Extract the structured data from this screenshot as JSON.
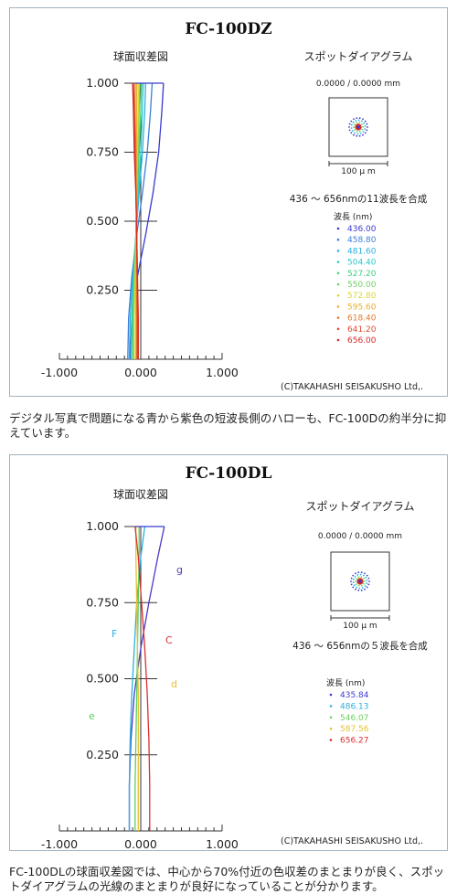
{
  "chart_data": [
    {
      "type": "line",
      "title": "FC-100DZ",
      "subtitle": "球面収差図",
      "x_ticks": [
        "-1.000",
        "0.000",
        "1.000"
      ],
      "y_ticks": [
        "1.000",
        "0.750",
        "0.500",
        "0.250"
      ],
      "xlim": [
        -1.0,
        1.0
      ],
      "ylim": [
        0,
        1.0
      ],
      "series": [
        {
          "name": "436.00",
          "color": "#3a3ad0",
          "x": [
            -0.13,
            -0.11,
            -0.04,
            0.06,
            0.15,
            0.22,
            0.26,
            0.28
          ],
          "y": [
            0,
            0.15,
            0.3,
            0.45,
            0.6,
            0.75,
            0.9,
            1.0
          ]
        },
        {
          "name": "458.80",
          "color": "#3d7fd8",
          "x": [
            -0.16,
            -0.15,
            -0.11,
            -0.05,
            0.02,
            0.08,
            0.12,
            0.14
          ],
          "y": [
            0,
            0.15,
            0.3,
            0.45,
            0.6,
            0.75,
            0.9,
            1.0
          ]
        },
        {
          "name": "481.60",
          "color": "#2ab0e0",
          "x": [
            -0.14,
            -0.13,
            -0.1,
            -0.06,
            -0.02,
            0.02,
            0.05,
            0.06
          ],
          "y": [
            0,
            0.15,
            0.3,
            0.45,
            0.6,
            0.75,
            0.9,
            1.0
          ]
        },
        {
          "name": "504.40",
          "color": "#30c8c8",
          "x": [
            -0.12,
            -0.11,
            -0.09,
            -0.06,
            -0.03,
            0.0,
            0.02,
            0.03
          ],
          "y": [
            0,
            0.15,
            0.3,
            0.45,
            0.6,
            0.75,
            0.9,
            1.0
          ]
        },
        {
          "name": "527.20",
          "color": "#3ecf80",
          "x": [
            -0.1,
            -0.1,
            -0.08,
            -0.06,
            -0.04,
            -0.02,
            0.0,
            0.01
          ],
          "y": [
            0,
            0.15,
            0.3,
            0.45,
            0.6,
            0.75,
            0.9,
            1.0
          ]
        },
        {
          "name": "550.00",
          "color": "#6ed060",
          "x": [
            -0.09,
            -0.09,
            -0.08,
            -0.06,
            -0.05,
            -0.03,
            -0.02,
            -0.01
          ],
          "y": [
            0,
            0.15,
            0.3,
            0.45,
            0.6,
            0.75,
            0.9,
            1.0
          ]
        },
        {
          "name": "572.80",
          "color": "#d8d838",
          "x": [
            -0.08,
            -0.08,
            -0.07,
            -0.06,
            -0.05,
            -0.04,
            -0.03,
            -0.03
          ],
          "y": [
            0,
            0.15,
            0.3,
            0.45,
            0.6,
            0.75,
            0.9,
            1.0
          ]
        },
        {
          "name": "595.60",
          "color": "#e8b030",
          "x": [
            -0.06,
            -0.06,
            -0.06,
            -0.06,
            -0.05,
            -0.05,
            -0.05,
            -0.05
          ],
          "y": [
            0,
            0.15,
            0.3,
            0.45,
            0.6,
            0.75,
            0.9,
            1.0
          ]
        },
        {
          "name": "618.40",
          "color": "#e07a30",
          "x": [
            -0.05,
            -0.05,
            -0.05,
            -0.05,
            -0.06,
            -0.06,
            -0.07,
            -0.07
          ],
          "y": [
            0,
            0.15,
            0.3,
            0.45,
            0.6,
            0.75,
            0.9,
            1.0
          ]
        },
        {
          "name": "641.20",
          "color": "#e04a30",
          "x": [
            -0.04,
            -0.04,
            -0.04,
            -0.05,
            -0.06,
            -0.07,
            -0.08,
            -0.09
          ],
          "y": [
            0,
            0.15,
            0.3,
            0.45,
            0.6,
            0.75,
            0.9,
            1.0
          ]
        },
        {
          "name": "656.00",
          "color": "#d42828",
          "x": [
            -0.03,
            -0.03,
            -0.04,
            -0.05,
            -0.06,
            -0.08,
            -0.09,
            -0.1
          ],
          "y": [
            0,
            0.15,
            0.3,
            0.45,
            0.6,
            0.75,
            0.9,
            1.0
          ]
        }
      ]
    },
    {
      "type": "line",
      "title": "FC-100DL",
      "subtitle": "球面収差図",
      "x_ticks": [
        "-1.000",
        "0.000",
        "1.000"
      ],
      "y_ticks": [
        "1.000",
        "0.750",
        "0.500",
        "0.250"
      ],
      "xlim": [
        -1.0,
        1.0
      ],
      "ylim": [
        0,
        1.0
      ],
      "series": [
        {
          "name": "g",
          "color": "#4a3ac8",
          "x": [
            -0.14,
            -0.14,
            -0.12,
            -0.08,
            0.0,
            0.1,
            0.21,
            0.29
          ],
          "y": [
            0,
            0.15,
            0.3,
            0.45,
            0.6,
            0.75,
            0.9,
            1.0
          ]
        },
        {
          "name": "F",
          "color": "#2ab0e0",
          "x": [
            -0.14,
            -0.14,
            -0.13,
            -0.11,
            -0.08,
            -0.05,
            0.0,
            0.05
          ],
          "y": [
            0,
            0.15,
            0.3,
            0.45,
            0.6,
            0.75,
            0.9,
            1.0
          ]
        },
        {
          "name": "e",
          "color": "#5ecc60",
          "x": [
            -0.07,
            -0.07,
            -0.06,
            -0.05,
            -0.04,
            -0.03,
            -0.02,
            -0.02
          ],
          "y": [
            0,
            0.15,
            0.3,
            0.45,
            0.6,
            0.75,
            0.9,
            1.0
          ]
        },
        {
          "name": "d",
          "color": "#e8c030",
          "x": [
            -0.03,
            -0.03,
            -0.03,
            -0.03,
            -0.04,
            -0.05,
            -0.06,
            -0.06
          ],
          "y": [
            0,
            0.15,
            0.3,
            0.45,
            0.6,
            0.75,
            0.9,
            1.0
          ]
        },
        {
          "name": "C",
          "color": "#d83030",
          "x": [
            0.11,
            0.11,
            0.1,
            0.08,
            0.05,
            0.01,
            -0.03,
            -0.07
          ],
          "y": [
            0,
            0.15,
            0.3,
            0.45,
            0.6,
            0.75,
            0.9,
            1.0
          ]
        }
      ]
    }
  ],
  "panels": [
    {
      "title": "FC-100DZ",
      "sa_title": "球面収差図",
      "spot_title": "スポットダイアグラム",
      "spot_coord": "0.0000 / 0.0000 mm",
      "scale_label": "100 μ m",
      "wave_note": "436 ～ 656nmの11波長を合成",
      "legend_title": "波長 (nm)",
      "legend": [
        {
          "label": "436.00",
          "color": "#3a3ad0"
        },
        {
          "label": "458.80",
          "color": "#3d7fd8"
        },
        {
          "label": "481.60",
          "color": "#2ab0e0"
        },
        {
          "label": "504.40",
          "color": "#30c8c8"
        },
        {
          "label": "527.20",
          "color": "#3ecf80"
        },
        {
          "label": "550.00",
          "color": "#6ed060"
        },
        {
          "label": "572.80",
          "color": "#d8d838"
        },
        {
          "label": "595.60",
          "color": "#e8b030"
        },
        {
          "label": "618.40",
          "color": "#e07a30"
        },
        {
          "label": "641.20",
          "color": "#e04a30"
        },
        {
          "label": "656.00",
          "color": "#d42828"
        }
      ],
      "copyright": "(C)TAKAHASHI SEISAKUSHO Ltd,."
    },
    {
      "title": "FC-100DL",
      "sa_title": "球面収差図",
      "spot_title": "スポットダイアグラム",
      "spot_coord": "0.0000 / 0.0000 mm",
      "scale_label": "100 μ m",
      "wave_note": "436 ～ 656nmの５波長を合成",
      "legend_title": "波長 (nm)",
      "legend": [
        {
          "label": "435.84",
          "color": "#3a3ad0"
        },
        {
          "label": "486.13",
          "color": "#2ab0e0"
        },
        {
          "label": "546.07",
          "color": "#6ed060"
        },
        {
          "label": "587.56",
          "color": "#e8c030"
        },
        {
          "label": "656.27",
          "color": "#d83030"
        }
      ],
      "copyright": "(C)TAKAHASHI SEISAKUSHO Ltd,."
    }
  ],
  "captions": {
    "first": "デジタル写真で問題になる青から紫色の短波長側のハローも、FC-100Dの約半分に抑えています。",
    "second": "FC-100DLの球面収差図では、中心から70%付近の色収差のまとまりが良く、スポットダイアグラムの光線のまとまりが良好になっていることが分かります。"
  }
}
